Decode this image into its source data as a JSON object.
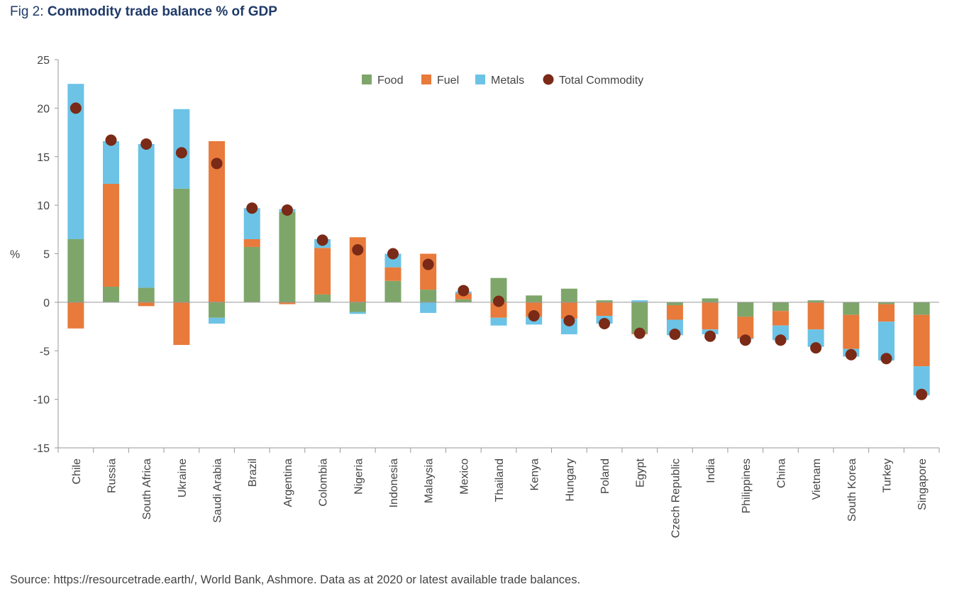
{
  "figure": {
    "prefix": "Fig 2: ",
    "title": "Commodity trade balance % of GDP"
  },
  "source": "Source: https://resourcetrade.earth/, World Bank, Ashmore. Data as at 2020 or latest available trade balances.",
  "colors": {
    "food": "#7ea66a",
    "fuel": "#e87a3b",
    "metals": "#6cc3e6",
    "total": "#7a2a16",
    "axis": "#999999",
    "text": "#444444"
  },
  "chart_data": {
    "type": "bar",
    "stacked": true,
    "title": "Commodity trade balance % of GDP",
    "xlabel": "",
    "ylabel": "%",
    "ylim": [
      -15,
      25
    ],
    "yticks": [
      25,
      20,
      15,
      10,
      5,
      0,
      -5,
      -10,
      -15
    ],
    "legend_position": "top",
    "legend": [
      "Food",
      "Fuel",
      "Metals",
      "Total Commodity"
    ],
    "categories": [
      "Chile",
      "Russia",
      "South Africa",
      "Ukraine",
      "Saudi Arabia",
      "Brazil",
      "Argentina",
      "Colombia",
      "Nigeria",
      "Indonesia",
      "Malaysia",
      "Mexico",
      "Thailand",
      "Kenya",
      "Hungary",
      "Poland",
      "Egypt",
      "Czech Republic",
      "India",
      "Philippines",
      "China",
      "Vietnam",
      "South Korea",
      "Turkey",
      "Singapore"
    ],
    "series": [
      {
        "name": "Food",
        "type": "bar",
        "values": [
          6.5,
          1.6,
          1.5,
          11.7,
          -1.6,
          5.7,
          9.3,
          0.8,
          -1.0,
          2.2,
          1.3,
          0.3,
          2.5,
          0.7,
          1.4,
          0.2,
          -3.2,
          -0.3,
          0.4,
          -1.5,
          -0.9,
          0.2,
          -1.3,
          -0.2,
          -1.3
        ]
      },
      {
        "name": "Fuel",
        "type": "bar",
        "values": [
          -2.7,
          10.6,
          -0.4,
          -4.4,
          16.6,
          0.8,
          -0.2,
          4.8,
          6.7,
          1.4,
          3.7,
          0.6,
          -1.6,
          -1.5,
          -1.7,
          -1.4,
          -0.1,
          -1.5,
          -2.8,
          -2.2,
          -1.5,
          -2.8,
          -3.5,
          -1.8,
          -5.3
        ]
      },
      {
        "name": "Metals",
        "type": "bar",
        "values": [
          16.0,
          4.4,
          14.8,
          8.2,
          -0.6,
          3.2,
          0.3,
          0.9,
          -0.2,
          1.4,
          -1.1,
          0.2,
          -0.8,
          -0.8,
          -1.6,
          -0.8,
          0.2,
          -1.6,
          -0.5,
          -0.1,
          -1.5,
          -1.8,
          -0.8,
          -4.0,
          -3.0
        ]
      },
      {
        "name": "Total Commodity",
        "type": "scatter",
        "values": [
          20.0,
          16.7,
          16.3,
          15.4,
          14.3,
          9.7,
          9.5,
          6.4,
          5.4,
          5.0,
          3.9,
          1.2,
          0.1,
          -1.4,
          -1.9,
          -2.2,
          -3.2,
          -3.3,
          -3.5,
          -3.9,
          -3.9,
          -4.7,
          -5.4,
          -5.8,
          -9.5
        ]
      }
    ]
  }
}
